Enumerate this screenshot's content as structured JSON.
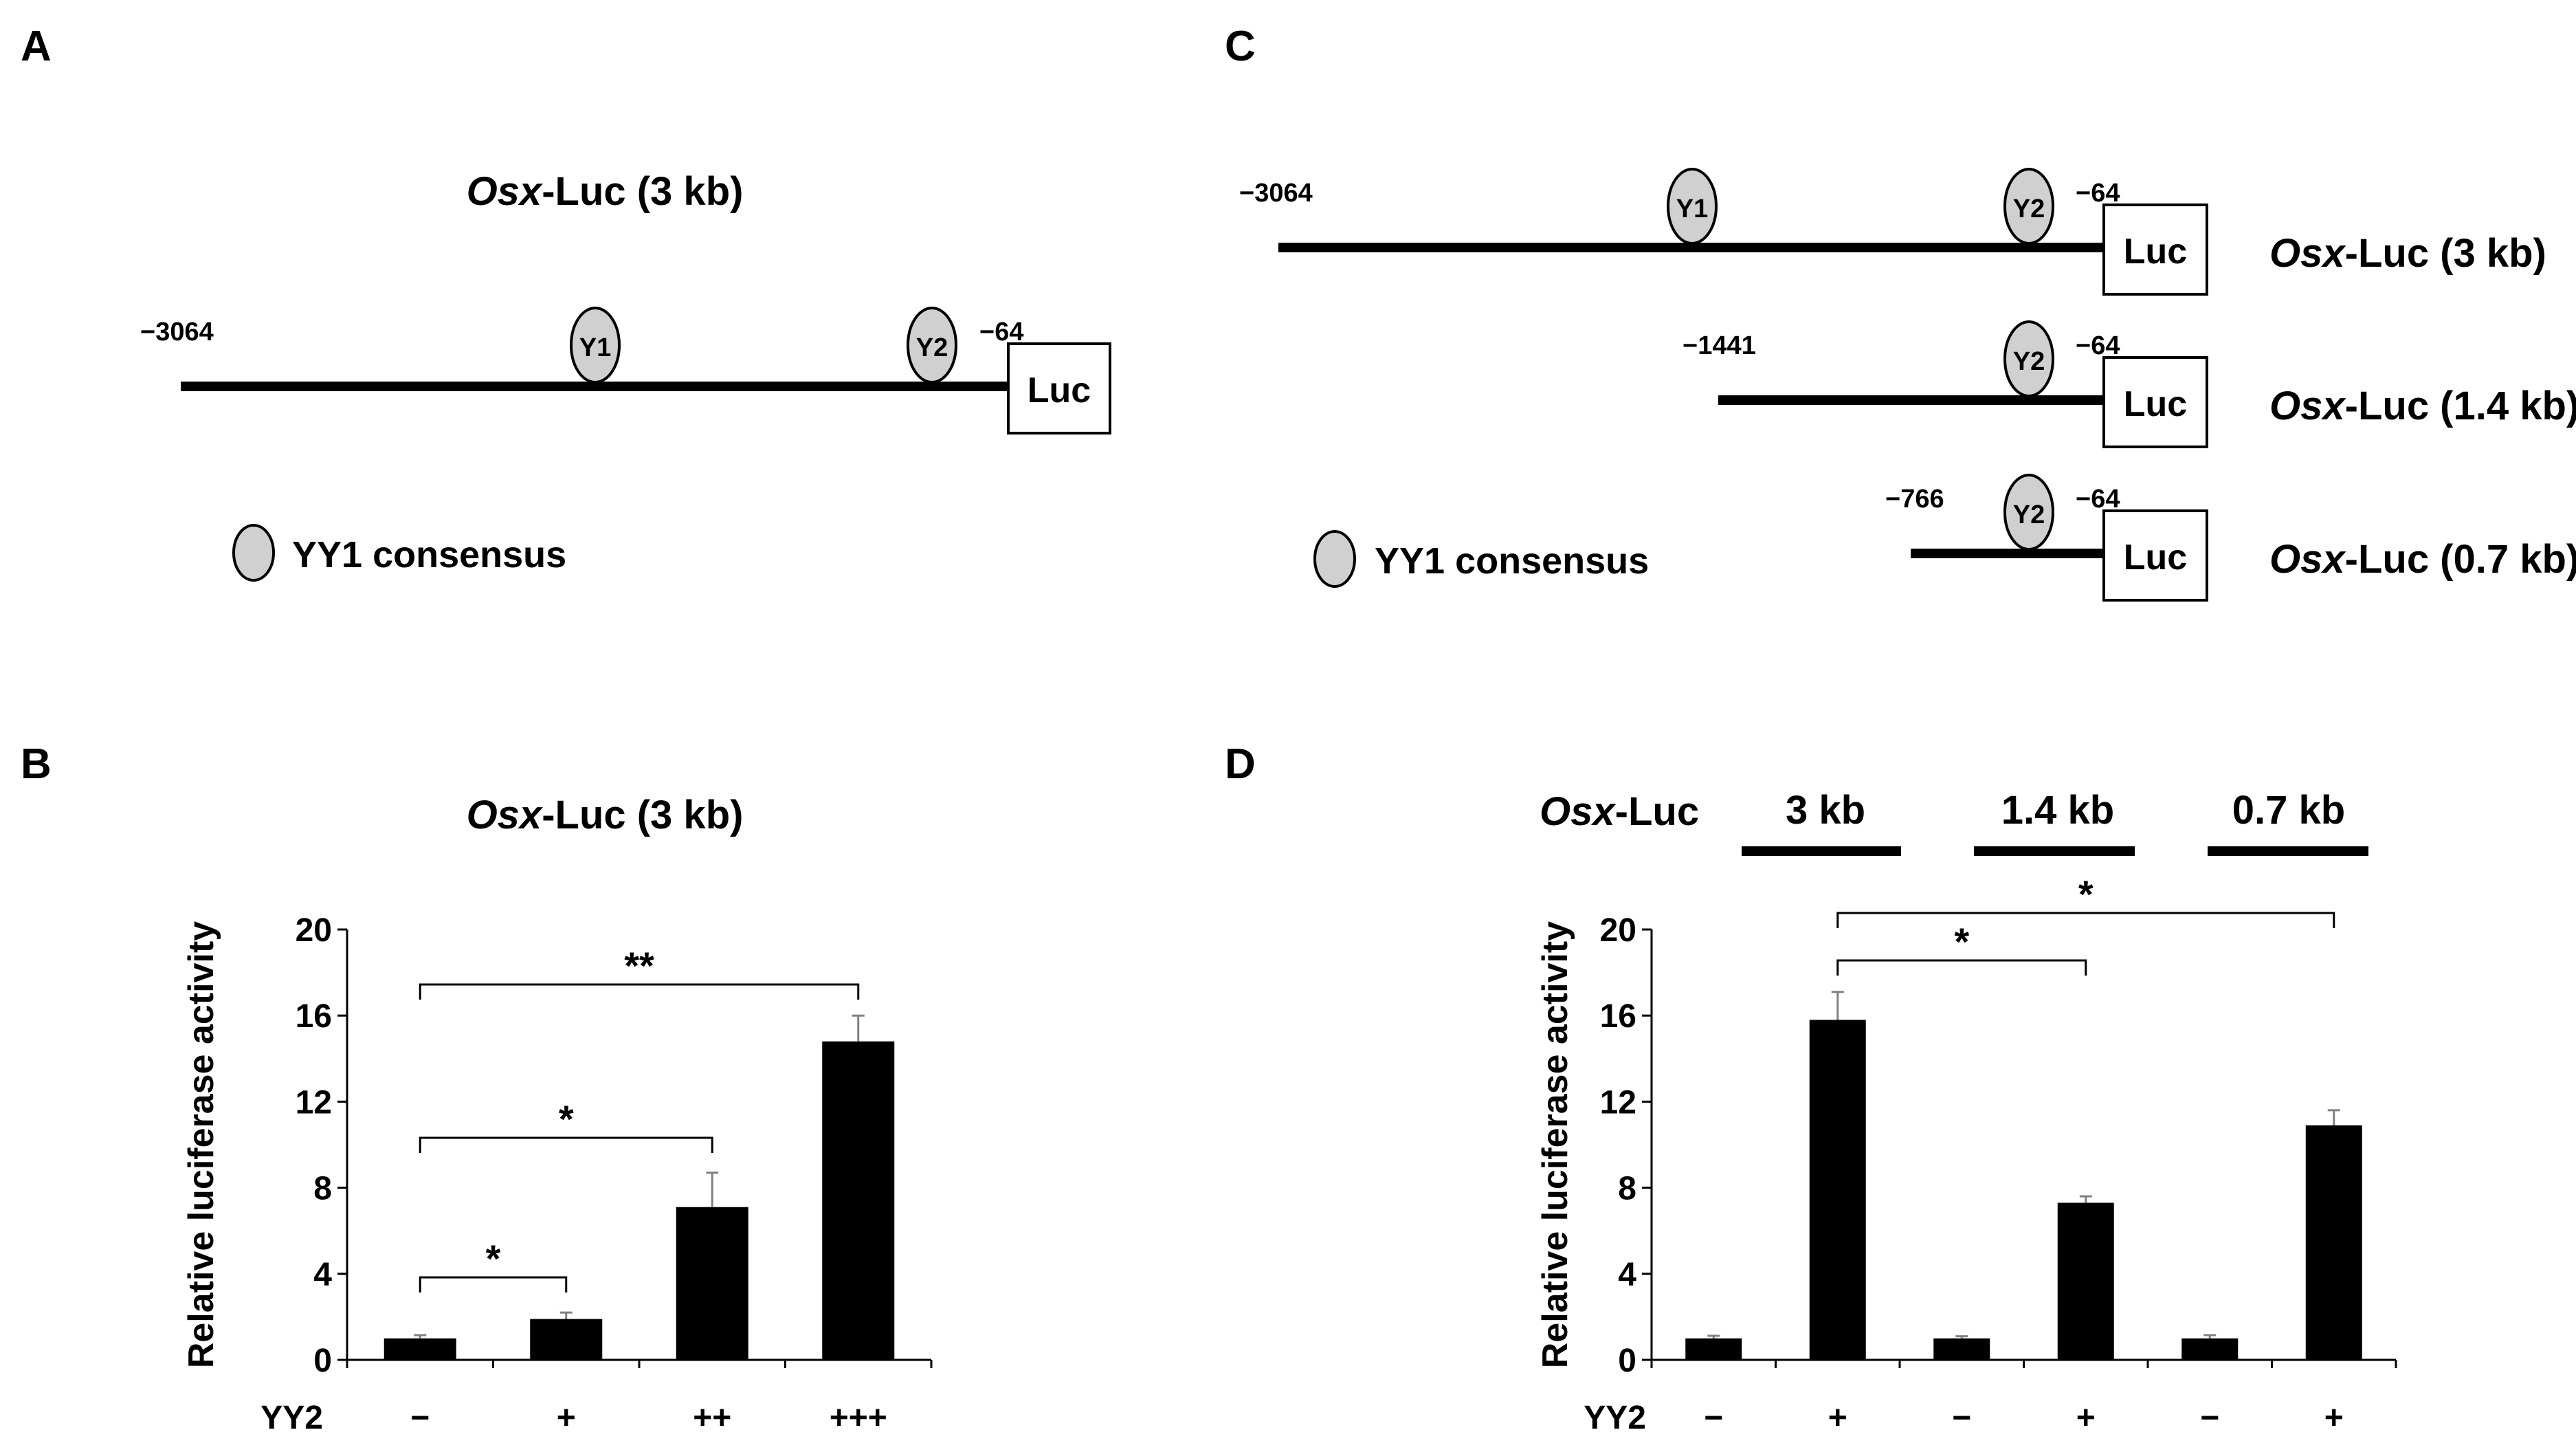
{
  "panels": {
    "a": {
      "letter": "A",
      "title_italic": "Osx",
      "title_rest": "-Luc (3 kb)",
      "start": "−3064",
      "end": "−64",
      "sites": [
        "Y1",
        "Y2"
      ],
      "reporter": "Luc",
      "legend": "YY1 consensus"
    },
    "c": {
      "letter": "C",
      "constructs": [
        {
          "start": "−3064",
          "end": "−64",
          "sites": [
            "Y1",
            "Y2"
          ],
          "reporter": "Luc",
          "label_italic": "Osx",
          "label_rest": "-Luc (3 kb)"
        },
        {
          "start": "−1441",
          "end": "−64",
          "sites": [
            "Y2"
          ],
          "reporter": "Luc",
          "label_italic": "Osx",
          "label_rest": "-Luc (1.4 kb)"
        },
        {
          "start": "−766",
          "end": "−64",
          "sites": [
            "Y2"
          ],
          "reporter": "Luc",
          "label_italic": "Osx",
          "label_rest": "-Luc (0.7 kb)"
        }
      ],
      "legend": "YY1 consensus"
    },
    "b": {
      "letter": "B"
    },
    "d": {
      "letter": "D",
      "group_header_italic": "Osx",
      "group_header_rest": "-Luc",
      "groups": [
        "3 kb",
        "1.4 kb",
        "0.7 kb"
      ]
    }
  },
  "chart_data": [
    {
      "panel": "B",
      "type": "bar",
      "title_italic": "Osx",
      "title_rest": "-Luc (3 kb)",
      "ylabel": "Relative luciferase activity",
      "xlabel": "YY2",
      "ylim": [
        0,
        20
      ],
      "yticks": [
        "0",
        "4",
        "8",
        "12",
        "16",
        "20"
      ],
      "categories": [
        "−",
        "+",
        "++",
        "+++"
      ],
      "values": [
        1.0,
        1.9,
        7.1,
        14.8
      ],
      "errors": [
        0.15,
        0.3,
        1.6,
        1.2
      ],
      "color": "#000000",
      "significance": [
        {
          "from": 0,
          "to": 1,
          "label": "*"
        },
        {
          "from": 0,
          "to": 2,
          "label": "*"
        },
        {
          "from": 0,
          "to": 3,
          "label": "**"
        }
      ]
    },
    {
      "panel": "D",
      "type": "bar",
      "ylabel": "Relative luciferase activity",
      "xlabel": "YY2",
      "ylim": [
        0,
        20
      ],
      "yticks": [
        "0",
        "4",
        "8",
        "12",
        "16",
        "20"
      ],
      "categories": [
        "−",
        "+",
        "−",
        "+",
        "−",
        "+"
      ],
      "groups": [
        "3 kb",
        "1.4 kb",
        "0.7 kb"
      ],
      "values": [
        1.0,
        15.8,
        1.0,
        7.3,
        1.0,
        10.9
      ],
      "errors": [
        0.12,
        1.3,
        0.1,
        0.3,
        0.15,
        0.7
      ],
      "color": "#000000",
      "significance": [
        {
          "from": 1,
          "to": 3,
          "label": "*"
        },
        {
          "from": 1,
          "to": 5,
          "label": "*"
        }
      ]
    }
  ]
}
